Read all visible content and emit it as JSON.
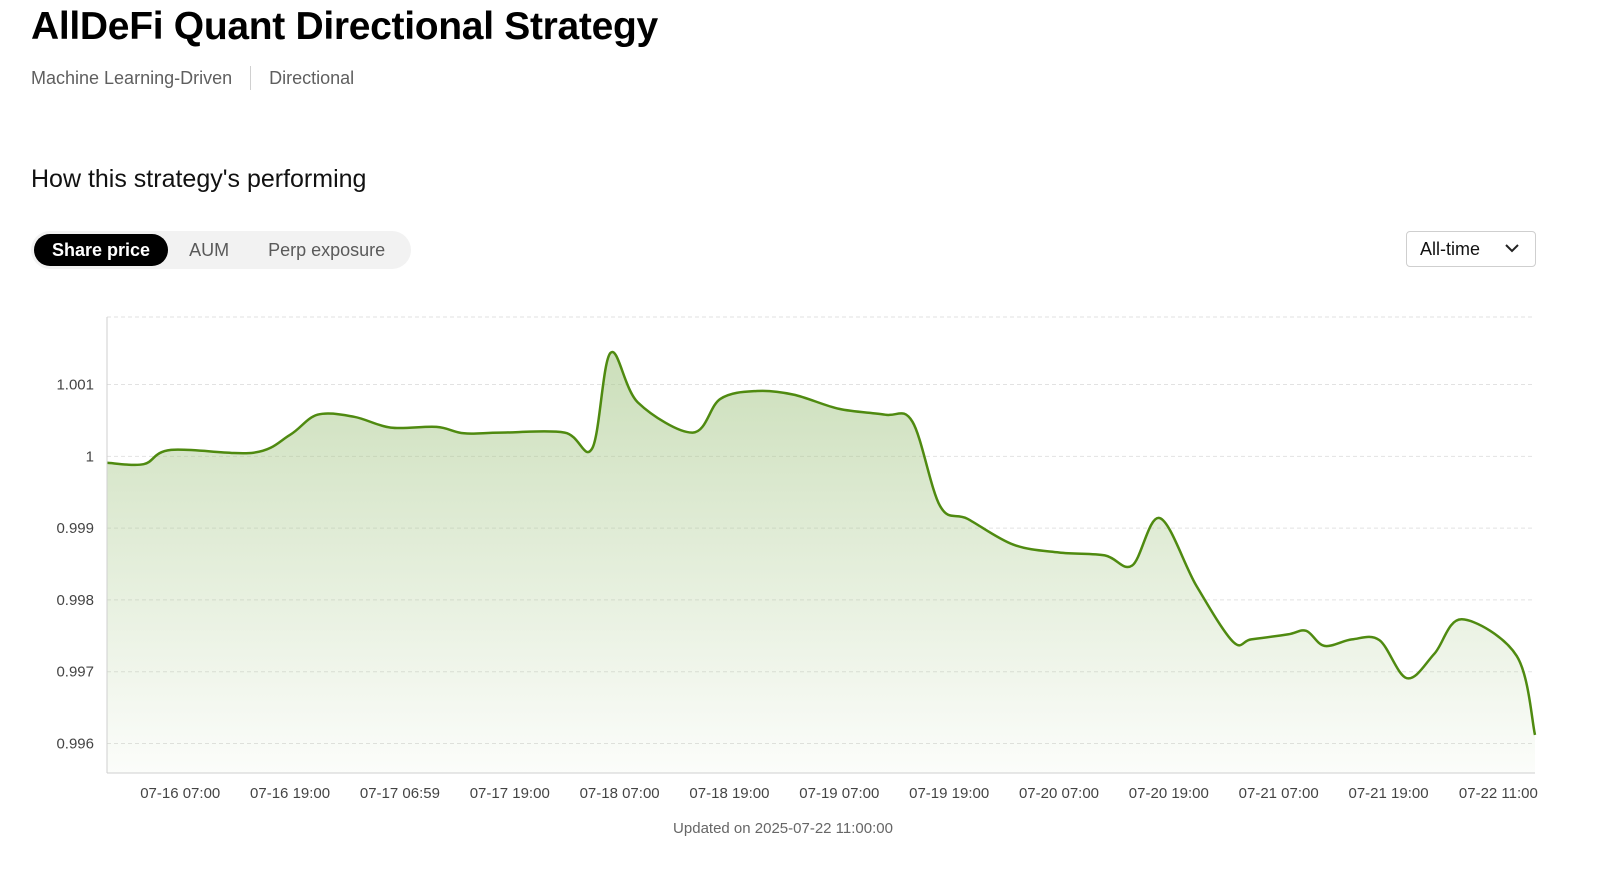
{
  "header": {
    "title": "AllDeFi Quant Directional Strategy",
    "tags": [
      "Machine Learning-Driven",
      "Directional"
    ]
  },
  "performance": {
    "section_title": "How this strategy's performing",
    "tabs": [
      {
        "label": "Share price",
        "active": true
      },
      {
        "label": "AUM",
        "active": false
      },
      {
        "label": "Perp exposure",
        "active": false
      }
    ],
    "range_select": {
      "value": "All-time"
    }
  },
  "chart_data": {
    "type": "area",
    "title": "",
    "xlabel": "",
    "ylabel": "",
    "ylim": [
      0.99559,
      1.00194
    ],
    "yticks": [
      "1.001",
      "1",
      "0.999",
      "0.998",
      "0.997",
      "0.996"
    ],
    "ytick_values": [
      1.001,
      1.0,
      0.999,
      0.998,
      0.997,
      0.996
    ],
    "grid": true,
    "line_color": "#4f8a10",
    "fill_color": "#a9c98c",
    "xtick_labels": [
      "07-16 07:00",
      "07-16 19:00",
      "07-17 06:59",
      "07-17 19:00",
      "07-18 07:00",
      "07-18 19:00",
      "07-19 07:00",
      "07-19 19:00",
      "07-20 07:00",
      "07-20 19:00",
      "07-21 07:00",
      "07-21 19:00",
      "07-22 11:00"
    ],
    "xtick_hours": [
      5,
      17,
      29,
      41,
      53,
      65,
      77,
      89,
      101,
      113,
      125,
      137,
      149
    ],
    "x_range_hours": [
      -3,
      153
    ],
    "series": [
      {
        "name": "",
        "x_hours": [
          -3,
          1,
          4,
          13,
          17,
          20,
          24,
          28,
          33,
          36,
          40,
          47,
          50,
          52,
          55,
          61,
          64,
          68,
          72,
          77,
          82,
          85,
          88,
          91,
          96,
          101,
          106,
          109,
          112,
          116,
          120,
          122,
          126,
          128,
          130,
          133,
          136,
          139,
          142,
          145,
          151,
          153
        ],
        "values": [
          0.99991,
          0.99989,
          1.00009,
          1.00005,
          1.0003,
          1.00058,
          1.00055,
          1.0004,
          1.00041,
          1.00032,
          1.00033,
          1.00033,
          1.00011,
          1.00144,
          1.00075,
          1.00033,
          1.0008,
          1.00091,
          1.00086,
          1.00066,
          1.00058,
          1.00048,
          0.99931,
          0.99913,
          0.99877,
          0.99866,
          0.99862,
          0.99848,
          0.99914,
          0.9982,
          0.99742,
          0.99745,
          0.99752,
          0.99757,
          0.99736,
          0.99745,
          0.99744,
          0.99691,
          0.99725,
          0.99773,
          0.99722,
          0.99612
        ]
      }
    ]
  },
  "footer": {
    "updated": "Updated on 2025-07-22 11:00:00"
  }
}
